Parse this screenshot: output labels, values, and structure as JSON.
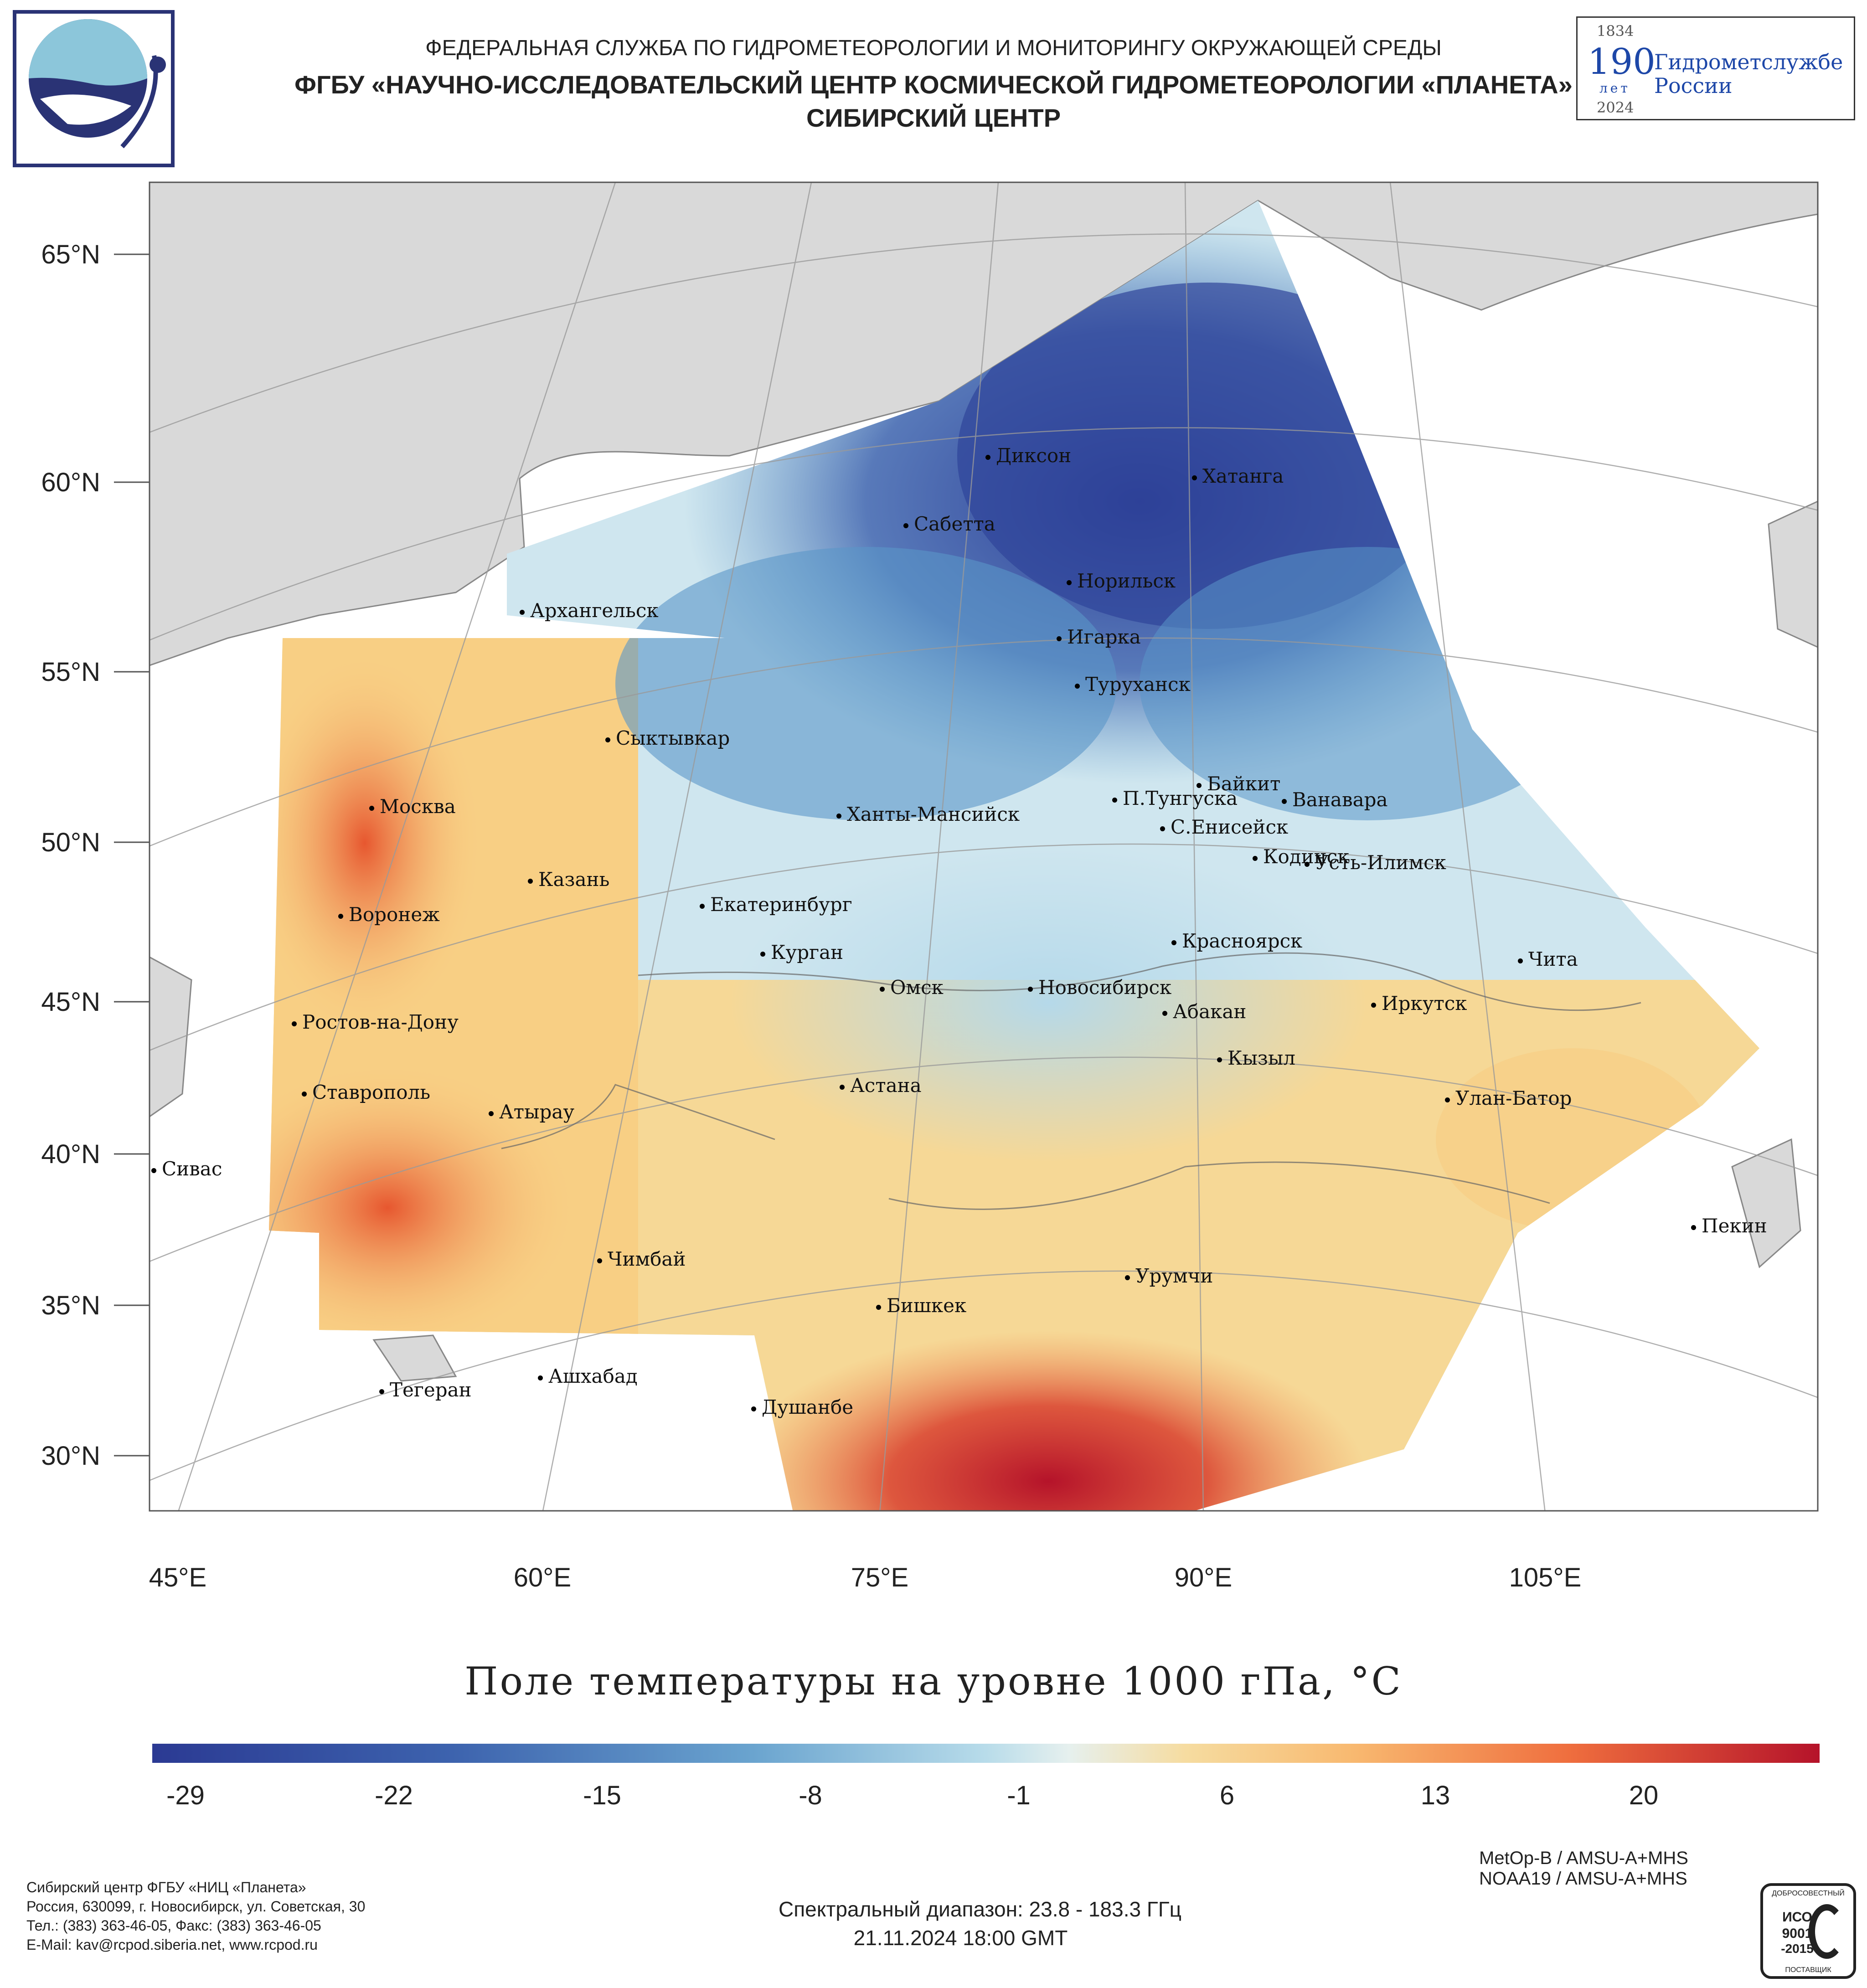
{
  "header": {
    "line1": "ФЕДЕРАЛЬНАЯ СЛУЖБА ПО ГИДРОМЕТЕОРОЛОГИИ И МОНИТОРИНГУ ОКРУЖАЮЩЕЙ СРЕДЫ",
    "line2": "ФГБУ «НАУЧНО-ИССЛЕДОВАТЕЛЬСКИЙ ЦЕНТР КОСМИЧЕСКОЙ ГИДРОМЕТЕОРОЛОГИИ «ПЛАНЕТА»",
    "line3": "СИБИРСКИЙ ЦЕНТР"
  },
  "badge": {
    "year_start": "1834",
    "number": "190",
    "unit": "лет",
    "year_end": "2024",
    "text1": "Гидрометслужбе",
    "text2": "России"
  },
  "map": {
    "lat_labels": [
      "65°N",
      "60°N",
      "55°N",
      "50°N",
      "45°N",
      "40°N",
      "35°N",
      "30°N"
    ],
    "lon_labels": [
      "45°E",
      "60°E",
      "75°E",
      "90°E",
      "105°E"
    ],
    "cities": [
      {
        "name": "Диксон"
      },
      {
        "name": "Хатанга"
      },
      {
        "name": "Сабетта"
      },
      {
        "name": "Норильск"
      },
      {
        "name": "Архангельск"
      },
      {
        "name": "Игарка"
      },
      {
        "name": "Туруханск"
      },
      {
        "name": "Сыктывкар"
      },
      {
        "name": "Байкит"
      },
      {
        "name": "Москва"
      },
      {
        "name": "П.Тунгуска"
      },
      {
        "name": "Ванавара"
      },
      {
        "name": "Ханты-Мансийск"
      },
      {
        "name": "С.Енисейск"
      },
      {
        "name": "Кодинск"
      },
      {
        "name": "Усть-Илимск"
      },
      {
        "name": "Казань"
      },
      {
        "name": "Екатеринбург"
      },
      {
        "name": "Воронеж"
      },
      {
        "name": "Красноярск"
      },
      {
        "name": "Курган"
      },
      {
        "name": "Чита"
      },
      {
        "name": "Омск"
      },
      {
        "name": "Новосибирск"
      },
      {
        "name": "Иркутск"
      },
      {
        "name": "Абакан"
      },
      {
        "name": "Ростов-на-Дону"
      },
      {
        "name": "Кызыл"
      },
      {
        "name": "Астана"
      },
      {
        "name": "Ставрополь"
      },
      {
        "name": "Улан-Батор"
      },
      {
        "name": "Атырау"
      },
      {
        "name": "Сивас"
      },
      {
        "name": "Пекин"
      },
      {
        "name": "Чимбай"
      },
      {
        "name": "Урумчи"
      },
      {
        "name": "Бишкек"
      },
      {
        "name": "Ашхабад"
      },
      {
        "name": "Тегеран"
      },
      {
        "name": "Душанбе"
      }
    ]
  },
  "title": "Поле температуры на уровне 1000 гПа, °C",
  "colorbar": {
    "ticks": [
      "-29",
      "-22",
      "-15",
      "-8",
      "-1",
      "6",
      "13",
      "20"
    ],
    "min": -30,
    "max": 26,
    "colors": {
      "cold": "#2b3a93",
      "cool": "#5a96c8",
      "mild": "#b5d9ea",
      "neutral": "#e6f0ee",
      "warm": "#f8cf84",
      "hot": "#ef6e3e",
      "max": "#b5132a"
    }
  },
  "satellites": {
    "line1": "MetOp-B / AMSU-A+MHS",
    "line2": "NOAA19 / AMSU-A+MHS"
  },
  "spectral": "Спектральный диапазон: 23.8 - 183.3 ГГц",
  "datetime": "21.11.2024 18:00 GMT",
  "footer": {
    "org": "Сибирский центр ФГБУ «НИЦ «Планета»",
    "address": "Россия, 630099, г. Новосибирск, ул. Советская, 30",
    "phone": "Тел.: (383) 363-46-05, Факс: (383) 363-46-05",
    "email": "E-Mail: kav@rcpod.siberia.net, www.rcpod.ru"
  },
  "iso": {
    "top": "ДОБРОСОВЕСТНЫЙ",
    "name": "ИСО",
    "num": "9001",
    "year": "-2015",
    "bottom": "ПОСТАВЩИК"
  }
}
